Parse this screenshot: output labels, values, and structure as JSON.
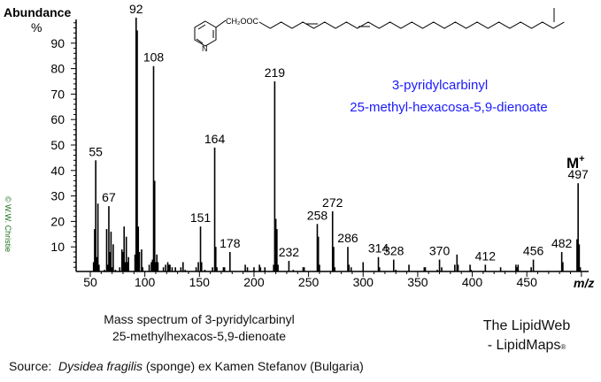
{
  "chart_data": {
    "type": "bar",
    "ylabel": "Abundance",
    "ylabel_unit": "%",
    "xlabel": "m/z",
    "xlim": [
      40,
      505
    ],
    "ylim": [
      0,
      100
    ],
    "x_ticks": [
      50,
      100,
      150,
      200,
      250,
      300,
      350,
      400,
      450
    ],
    "y_ticks": [
      10,
      20,
      30,
      40,
      50,
      60,
      70,
      80,
      90
    ],
    "grid": false,
    "peaks": [
      [
        53,
        4
      ],
      [
        54,
        17
      ],
      [
        55,
        44
      ],
      [
        56,
        6
      ],
      [
        57,
        27
      ],
      [
        58,
        3
      ],
      [
        63,
        1
      ],
      [
        65,
        17
      ],
      [
        66,
        3
      ],
      [
        67,
        26
      ],
      [
        68,
        8
      ],
      [
        69,
        16
      ],
      [
        70,
        2
      ],
      [
        71,
        11
      ],
      [
        73,
        1
      ],
      [
        77,
        2
      ],
      [
        79,
        9
      ],
      [
        80,
        8
      ],
      [
        81,
        18
      ],
      [
        82,
        4
      ],
      [
        83,
        14
      ],
      [
        84,
        4
      ],
      [
        85,
        6
      ],
      [
        91,
        7
      ],
      [
        92,
        100
      ],
      [
        93,
        95
      ],
      [
        94,
        18
      ],
      [
        95,
        8
      ],
      [
        97,
        9
      ],
      [
        98,
        2
      ],
      [
        104,
        3
      ],
      [
        106,
        4
      ],
      [
        107,
        5
      ],
      [
        108,
        81
      ],
      [
        109,
        36
      ],
      [
        110,
        4
      ],
      [
        111,
        7
      ],
      [
        112,
        4
      ],
      [
        117,
        2
      ],
      [
        119,
        3
      ],
      [
        121,
        4
      ],
      [
        122,
        3
      ],
      [
        123,
        3
      ],
      [
        125,
        2
      ],
      [
        128,
        2
      ],
      [
        133,
        2
      ],
      [
        135,
        4
      ],
      [
        137,
        1
      ],
      [
        147,
        2
      ],
      [
        149,
        4
      ],
      [
        151,
        18
      ],
      [
        152,
        4
      ],
      [
        155,
        1
      ],
      [
        162,
        2
      ],
      [
        164,
        49
      ],
      [
        165,
        10
      ],
      [
        166,
        2
      ],
      [
        172,
        2
      ],
      [
        173,
        2
      ],
      [
        178,
        8
      ],
      [
        192,
        3
      ],
      [
        194,
        2
      ],
      [
        200,
        2
      ],
      [
        205,
        3
      ],
      [
        206,
        2
      ],
      [
        210,
        2
      ],
      [
        218,
        3
      ],
      [
        219,
        75
      ],
      [
        220,
        21
      ],
      [
        221,
        17
      ],
      [
        222,
        3
      ],
      [
        232,
        4.5
      ],
      [
        236,
        1
      ],
      [
        245,
        2
      ],
      [
        246,
        2
      ],
      [
        258,
        19
      ],
      [
        259,
        14
      ],
      [
        260,
        3
      ],
      [
        272,
        24
      ],
      [
        273,
        10
      ],
      [
        274,
        2
      ],
      [
        286,
        10
      ],
      [
        287,
        3
      ],
      [
        289,
        2
      ],
      [
        300,
        4
      ],
      [
        314,
        6
      ],
      [
        315,
        2
      ],
      [
        328,
        5
      ],
      [
        330,
        1
      ],
      [
        342,
        3
      ],
      [
        356,
        2
      ],
      [
        357,
        2
      ],
      [
        368,
        1
      ],
      [
        370,
        5
      ],
      [
        372,
        2
      ],
      [
        384,
        3
      ],
      [
        386,
        7
      ],
      [
        387,
        3
      ],
      [
        398,
        3
      ],
      [
        399,
        1
      ],
      [
        412,
        3
      ],
      [
        426,
        2
      ],
      [
        440,
        3
      ],
      [
        441,
        2
      ],
      [
        442,
        3
      ],
      [
        454,
        2
      ],
      [
        456,
        5
      ],
      [
        482,
        8
      ],
      [
        483,
        4
      ],
      [
        496,
        13
      ],
      [
        497,
        35
      ],
      [
        498,
        11
      ],
      [
        499,
        2
      ]
    ],
    "peak_labels": [
      "55",
      "67",
      "92",
      "108",
      "151",
      "164",
      "178",
      "219",
      "232",
      "258",
      "272",
      "286",
      "314",
      "328",
      "370",
      "412",
      "456",
      "482",
      "497"
    ],
    "peak_label_values": [
      [
        55,
        44
      ],
      [
        67,
        26
      ],
      [
        92,
        100
      ],
      [
        108,
        81
      ],
      [
        151,
        18
      ],
      [
        164,
        49
      ],
      [
        178,
        8
      ],
      [
        219,
        75
      ],
      [
        232,
        4.5
      ],
      [
        258,
        19
      ],
      [
        272,
        24
      ],
      [
        286,
        10
      ],
      [
        314,
        6
      ],
      [
        328,
        5
      ],
      [
        370,
        5
      ],
      [
        412,
        3
      ],
      [
        456,
        5
      ],
      [
        482,
        8
      ],
      [
        497,
        35
      ]
    ],
    "molecular_ion_label": "M",
    "molecular_ion_charge": "+",
    "compound_name_line1": "3-pyridylcarbinyl",
    "compound_name_line2": "25-methyl-hexacosa-5,9-dienoate",
    "compound_name_color": "#1a1aff"
  },
  "structure": {
    "ester_group": "CH₂OOC",
    "ring_atom": "N"
  },
  "copyright": "© W.W. Christie",
  "caption": {
    "line1": "Mass spectrum of 3-pyridylcarbinyl",
    "line2": "25-methylhexacos-5,9-dienoate"
  },
  "branding": {
    "line1": "The LipidWeb",
    "line2": "- LipidMaps",
    "mark": "®"
  },
  "source": {
    "prefix": "Source:  ",
    "species": "Dysidea fragilis",
    "suffix": " (sponge) ex Kamen Stefanov (Bulgaria)"
  }
}
